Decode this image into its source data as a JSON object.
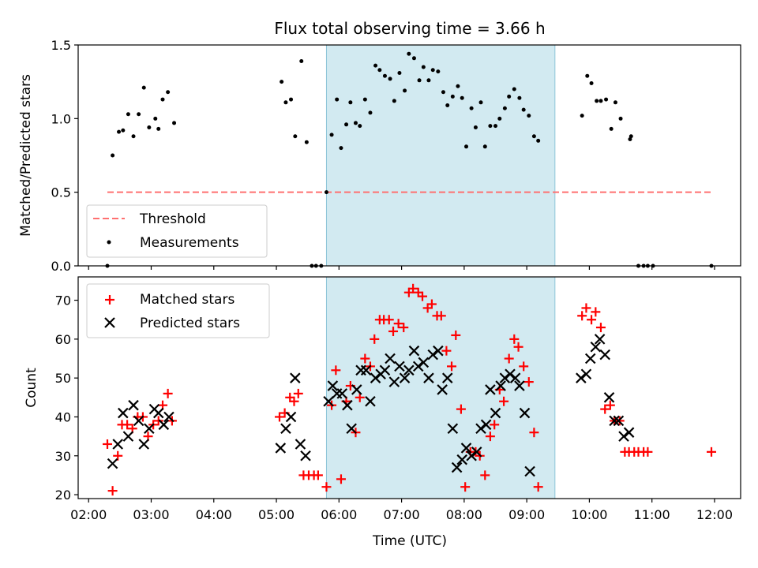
{
  "chart_data": [
    {
      "type": "scatter",
      "title": "Flux total observing time = 3.66 h",
      "xlabel": "",
      "ylabel": "Matched/Predicted stars",
      "ylim": [
        0,
        1.5
      ],
      "yticks": [
        "0.0",
        "0.5",
        "1.0",
        "1.5"
      ],
      "xlim": [
        "01:50",
        "12:25"
      ],
      "x_ticks": [
        "02:00",
        "03:00",
        "04:00",
        "05:00",
        "06:00",
        "07:00",
        "08:00",
        "09:00",
        "10:00",
        "11:00",
        "12:00"
      ],
      "shaded_interval": {
        "start": "05:48",
        "end": "09:27",
        "color": "#add8e6"
      },
      "legend": {
        "placement": "lower-left",
        "entries": [
          "Threshold",
          "Measurements"
        ]
      },
      "threshold": {
        "name": "Threshold",
        "value": 0.5,
        "x_start": "02:18",
        "x_end": "11:57",
        "color": "#ff7070",
        "style": "dashed"
      },
      "series": [
        {
          "name": "Measurements",
          "color": "#000000",
          "marker": "dot",
          "points": [
            [
              "02:18",
              0.0
            ],
            [
              "02:23",
              0.75
            ],
            [
              "02:29",
              0.91
            ],
            [
              "02:33",
              0.92
            ],
            [
              "02:38",
              1.03
            ],
            [
              "02:43",
              0.88
            ],
            [
              "02:48",
              1.03
            ],
            [
              "02:53",
              1.21
            ],
            [
              "02:58",
              0.94
            ],
            [
              "03:04",
              1.0
            ],
            [
              "03:07",
              0.93
            ],
            [
              "03:11",
              1.13
            ],
            [
              "03:16",
              1.18
            ],
            [
              "03:22",
              0.97
            ],
            [
              "05:05",
              1.25
            ],
            [
              "05:09",
              1.11
            ],
            [
              "05:14",
              1.13
            ],
            [
              "05:18",
              0.88
            ],
            [
              "05:24",
              1.39
            ],
            [
              "05:29",
              0.84
            ],
            [
              "05:34",
              0.0
            ],
            [
              "05:38",
              0.0
            ],
            [
              "05:43",
              0.0
            ],
            [
              "05:48",
              0.5
            ],
            [
              "05:53",
              0.89
            ],
            [
              "05:58",
              1.13
            ],
            [
              "06:02",
              0.8
            ],
            [
              "06:07",
              0.96
            ],
            [
              "06:11",
              1.11
            ],
            [
              "06:16",
              0.97
            ],
            [
              "06:20",
              0.95
            ],
            [
              "06:25",
              1.13
            ],
            [
              "06:30",
              1.04
            ],
            [
              "06:35",
              1.36
            ],
            [
              "06:39",
              1.33
            ],
            [
              "06:44",
              1.29
            ],
            [
              "06:49",
              1.27
            ],
            [
              "06:53",
              1.12
            ],
            [
              "06:58",
              1.31
            ],
            [
              "07:03",
              1.19
            ],
            [
              "07:07",
              1.44
            ],
            [
              "07:12",
              1.41
            ],
            [
              "07:17",
              1.26
            ],
            [
              "07:21",
              1.35
            ],
            [
              "07:26",
              1.26
            ],
            [
              "07:30",
              1.33
            ],
            [
              "07:35",
              1.32
            ],
            [
              "07:40",
              1.18
            ],
            [
              "07:44",
              1.09
            ],
            [
              "07:49",
              1.15
            ],
            [
              "07:54",
              1.22
            ],
            [
              "07:58",
              1.14
            ],
            [
              "08:02",
              0.81
            ],
            [
              "08:07",
              1.07
            ],
            [
              "08:11",
              0.94
            ],
            [
              "08:16",
              1.11
            ],
            [
              "08:20",
              0.81
            ],
            [
              "08:25",
              0.95
            ],
            [
              "08:30",
              0.95
            ],
            [
              "08:34",
              1.0
            ],
            [
              "08:39",
              1.07
            ],
            [
              "08:43",
              1.15
            ],
            [
              "08:48",
              1.2
            ],
            [
              "08:53",
              1.14
            ],
            [
              "08:57",
              1.06
            ],
            [
              "09:02",
              1.02
            ],
            [
              "09:07",
              0.88
            ],
            [
              "09:11",
              0.85
            ],
            [
              "09:53",
              1.02
            ],
            [
              "09:58",
              1.29
            ],
            [
              "10:02",
              1.24
            ],
            [
              "10:07",
              1.12
            ],
            [
              "10:11",
              1.12
            ],
            [
              "10:16",
              1.13
            ],
            [
              "10:21",
              0.93
            ],
            [
              "10:25",
              1.11
            ],
            [
              "10:30",
              1.0
            ],
            [
              "10:39",
              0.86
            ],
            [
              "10:40",
              0.88
            ],
            [
              "10:47",
              0.0
            ],
            [
              "10:52",
              0.0
            ],
            [
              "10:56",
              0.0
            ],
            [
              "11:01",
              0.0
            ],
            [
              "11:57",
              0.0
            ]
          ]
        }
      ]
    },
    {
      "type": "scatter",
      "title": "",
      "xlabel": "Time (UTC)",
      "ylabel": "Count",
      "ylim": [
        19,
        76
      ],
      "yticks": [
        "20",
        "30",
        "40",
        "50",
        "60",
        "70"
      ],
      "xlim": [
        "01:50",
        "12:25"
      ],
      "x_ticks": [
        "02:00",
        "03:00",
        "04:00",
        "05:00",
        "06:00",
        "07:00",
        "08:00",
        "09:00",
        "10:00",
        "11:00",
        "12:00"
      ],
      "shaded_interval": {
        "start": "05:48",
        "end": "09:27",
        "color": "#add8e6"
      },
      "legend": {
        "placement": "top-left",
        "entries": [
          "Matched stars",
          "Predicted stars"
        ]
      },
      "series": [
        {
          "name": "Matched stars",
          "color": "#ff0000",
          "marker": "plus",
          "points": [
            [
              "02:18",
              33
            ],
            [
              "02:23",
              21
            ],
            [
              "02:28",
              30
            ],
            [
              "02:32",
              38
            ],
            [
              "02:37",
              38
            ],
            [
              "02:42",
              37
            ],
            [
              "02:47",
              40
            ],
            [
              "02:52",
              40
            ],
            [
              "02:57",
              35
            ],
            [
              "03:02",
              38
            ],
            [
              "03:07",
              39
            ],
            [
              "03:11",
              43
            ],
            [
              "03:16",
              46
            ],
            [
              "03:20",
              39
            ],
            [
              "05:03",
              40
            ],
            [
              "05:08",
              41
            ],
            [
              "05:13",
              45
            ],
            [
              "05:17",
              44
            ],
            [
              "05:21",
              46
            ],
            [
              "05:26",
              25
            ],
            [
              "05:31",
              25
            ],
            [
              "05:36",
              25
            ],
            [
              "05:40",
              25
            ],
            [
              "05:48",
              22
            ],
            [
              "05:53",
              43
            ],
            [
              "05:57",
              52
            ],
            [
              "06:02",
              24
            ],
            [
              "06:07",
              44
            ],
            [
              "06:11",
              48
            ],
            [
              "06:16",
              36
            ],
            [
              "06:20",
              45
            ],
            [
              "06:25",
              55
            ],
            [
              "06:30",
              53
            ],
            [
              "06:34",
              60
            ],
            [
              "06:39",
              65
            ],
            [
              "06:43",
              65
            ],
            [
              "06:48",
              65
            ],
            [
              "06:52",
              62
            ],
            [
              "06:57",
              64
            ],
            [
              "07:02",
              63
            ],
            [
              "07:07",
              72
            ],
            [
              "07:11",
              73
            ],
            [
              "07:16",
              72
            ],
            [
              "07:20",
              71
            ],
            [
              "07:25",
              68
            ],
            [
              "07:29",
              69
            ],
            [
              "07:34",
              66
            ],
            [
              "07:38",
              66
            ],
            [
              "07:43",
              57
            ],
            [
              "07:48",
              53
            ],
            [
              "07:52",
              61
            ],
            [
              "07:57",
              42
            ],
            [
              "08:01",
              22
            ],
            [
              "08:06",
              31
            ],
            [
              "08:11",
              31
            ],
            [
              "08:15",
              30
            ],
            [
              "08:20",
              25
            ],
            [
              "08:25",
              35
            ],
            [
              "08:29",
              38
            ],
            [
              "08:34",
              47
            ],
            [
              "08:38",
              44
            ],
            [
              "08:43",
              55
            ],
            [
              "08:48",
              60
            ],
            [
              "08:52",
              58
            ],
            [
              "08:57",
              53
            ],
            [
              "09:02",
              49
            ],
            [
              "09:07",
              36
            ],
            [
              "09:11",
              22
            ],
            [
              "09:53",
              66
            ],
            [
              "09:57",
              68
            ],
            [
              "10:02",
              65
            ],
            [
              "10:06",
              67
            ],
            [
              "10:11",
              63
            ],
            [
              "10:15",
              42
            ],
            [
              "10:20",
              43
            ],
            [
              "10:24",
              39
            ],
            [
              "10:29",
              39
            ],
            [
              "10:34",
              31
            ],
            [
              "10:38",
              31
            ],
            [
              "10:43",
              31
            ],
            [
              "10:47",
              31
            ],
            [
              "10:52",
              31
            ],
            [
              "10:56",
              31
            ],
            [
              "11:57",
              31
            ]
          ]
        },
        {
          "name": "Predicted stars",
          "color": "#000000",
          "marker": "x",
          "points": [
            [
              "02:23",
              28
            ],
            [
              "02:28",
              33
            ],
            [
              "02:33",
              41
            ],
            [
              "02:38",
              35
            ],
            [
              "02:43",
              43
            ],
            [
              "02:48",
              39
            ],
            [
              "02:53",
              33
            ],
            [
              "02:58",
              37
            ],
            [
              "03:03",
              42
            ],
            [
              "03:07",
              41
            ],
            [
              "03:12",
              38
            ],
            [
              "03:17",
              40
            ],
            [
              "05:04",
              32
            ],
            [
              "05:09",
              37
            ],
            [
              "05:14",
              40
            ],
            [
              "05:18",
              50
            ],
            [
              "05:23",
              33
            ],
            [
              "05:28",
              30
            ],
            [
              "05:50",
              44
            ],
            [
              "05:54",
              48
            ],
            [
              "05:58",
              46
            ],
            [
              "06:03",
              46
            ],
            [
              "06:08",
              43
            ],
            [
              "06:12",
              37
            ],
            [
              "06:17",
              47
            ],
            [
              "06:21",
              52
            ],
            [
              "06:26",
              52
            ],
            [
              "06:30",
              44
            ],
            [
              "06:35",
              50
            ],
            [
              "06:40",
              51
            ],
            [
              "06:44",
              52
            ],
            [
              "06:49",
              55
            ],
            [
              "06:53",
              49
            ],
            [
              "06:58",
              53
            ],
            [
              "07:03",
              50
            ],
            [
              "07:07",
              52
            ],
            [
              "07:12",
              57
            ],
            [
              "07:16",
              53
            ],
            [
              "07:21",
              54
            ],
            [
              "07:26",
              50
            ],
            [
              "07:30",
              56
            ],
            [
              "07:35",
              57
            ],
            [
              "07:39",
              47
            ],
            [
              "07:44",
              50
            ],
            [
              "07:49",
              37
            ],
            [
              "07:53",
              27
            ],
            [
              "07:58",
              29
            ],
            [
              "08:02",
              32
            ],
            [
              "08:07",
              30
            ],
            [
              "08:12",
              31
            ],
            [
              "08:16",
              37
            ],
            [
              "08:21",
              38
            ],
            [
              "08:25",
              47
            ],
            [
              "08:30",
              41
            ],
            [
              "08:35",
              48
            ],
            [
              "08:39",
              50
            ],
            [
              "08:44",
              51
            ],
            [
              "08:49",
              50
            ],
            [
              "08:53",
              48
            ],
            [
              "08:58",
              41
            ],
            [
              "09:03",
              26
            ],
            [
              "09:52",
              50
            ],
            [
              "09:57",
              51
            ],
            [
              "10:01",
              55
            ],
            [
              "10:06",
              58
            ],
            [
              "10:10",
              60
            ],
            [
              "10:15",
              56
            ],
            [
              "10:19",
              45
            ],
            [
              "10:24",
              39
            ],
            [
              "10:28",
              39
            ],
            [
              "10:33",
              35
            ],
            [
              "10:38",
              36
            ]
          ]
        }
      ]
    }
  ]
}
